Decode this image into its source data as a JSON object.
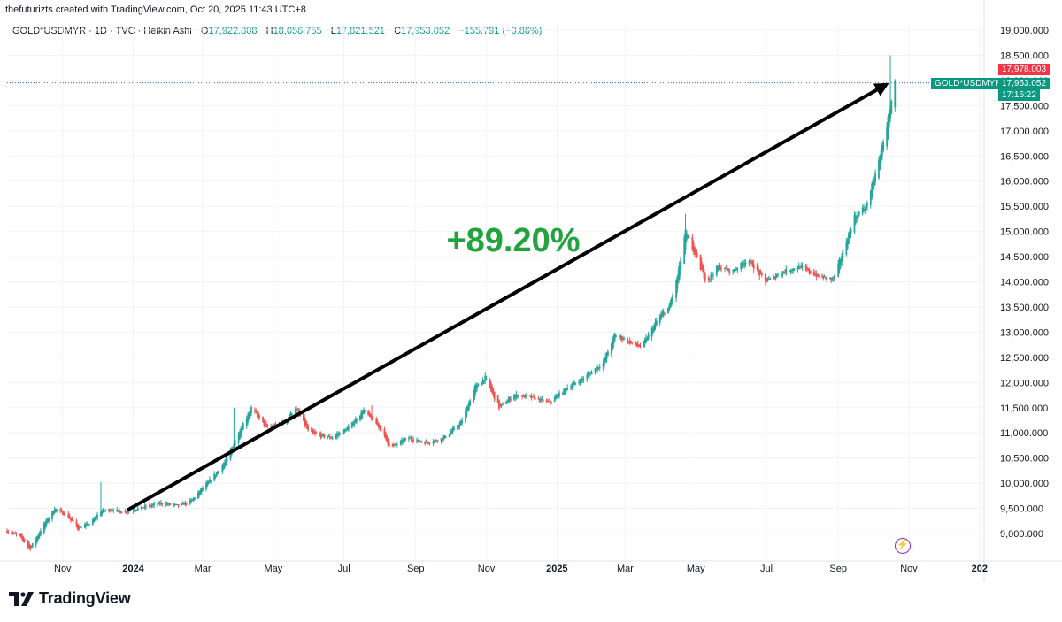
{
  "header": {
    "credit": "thefuturizts created with TradingView.com, Oct 20, 2025 11:43 UTC+8"
  },
  "legend": {
    "symbol": "GOLD*USDMYR · 1D · TVC · Heikin Ashi",
    "open_label": "O",
    "open": "17,922.808",
    "high_label": "H",
    "high": "18,056.755",
    "low_label": "L",
    "low": "17,821.521",
    "close_label": "C",
    "close": "17,953.052",
    "change": "−155.791 (−0.86%)"
  },
  "price_tags": {
    "symbol_tag": "GOLD*USDMYR",
    "high_tag": "17,978.003",
    "last_price": "17,953.052",
    "countdown": "17:16:22"
  },
  "annotation": {
    "text": "+89.20%"
  },
  "footer": {
    "brand": "TradingView"
  },
  "colors": {
    "up": "#26a69a",
    "down": "#ef5350",
    "annotation": "#22a33d",
    "arrow": "#000000",
    "price_line": "#2962ff",
    "tag_green": "#089981",
    "tag_red": "#f23645"
  },
  "chart_data": {
    "type": "candlestick",
    "title": "GOLD*USDMYR",
    "x_ticks": [
      "Nov",
      "2024",
      "Mar",
      "May",
      "Jul",
      "Sep",
      "Nov",
      "2025",
      "Mar",
      "May",
      "Jul",
      "Sep",
      "Nov",
      "202"
    ],
    "y_ticks": [
      "19,000.000",
      "18,500.000",
      "18,000.000",
      "17,500.000",
      "17,000.000",
      "16,500.000",
      "16,000.000",
      "15,500.000",
      "15,000.000",
      "14,500.000",
      "14,000.000",
      "13,500.000",
      "13,000.000",
      "12,500.000",
      "12,000.000",
      "11,500.000",
      "11,000.000",
      "10,500.000",
      "10,000.000",
      "9,500.000",
      "9,000.000"
    ],
    "ylim": [
      8600,
      19200
    ],
    "x_range": [
      "2023-09-14",
      "2026-01-05"
    ],
    "series_path": [
      [
        "2023-09-14",
        9050
      ],
      [
        "2023-09-25",
        8950
      ],
      [
        "2023-10-04",
        8700
      ],
      [
        "2023-10-15",
        9150
      ],
      [
        "2023-10-25",
        9500
      ],
      [
        "2023-11-05",
        9350
      ],
      [
        "2023-11-14",
        9100
      ],
      [
        "2023-11-25",
        9200
      ],
      [
        "2023-12-04",
        9450
      ],
      [
        "2023-12-15",
        9480
      ],
      [
        "2023-12-22",
        9420
      ],
      [
        "2024-01-05",
        9500
      ],
      [
        "2024-01-25",
        9600
      ],
      [
        "2024-02-10",
        9550
      ],
      [
        "2024-02-20",
        9650
      ],
      [
        "2024-03-05",
        10000
      ],
      [
        "2024-03-20",
        10400
      ],
      [
        "2024-04-01",
        11000
      ],
      [
        "2024-04-12",
        11500
      ],
      [
        "2024-04-25",
        11100
      ],
      [
        "2024-05-10",
        11200
      ],
      [
        "2024-05-20",
        11500
      ],
      [
        "2024-06-01",
        11000
      ],
      [
        "2024-06-20",
        10900
      ],
      [
        "2024-07-05",
        11100
      ],
      [
        "2024-07-18",
        11450
      ],
      [
        "2024-08-01",
        11100
      ],
      [
        "2024-08-10",
        10700
      ],
      [
        "2024-08-25",
        10900
      ],
      [
        "2024-09-10",
        10800
      ],
      [
        "2024-09-25",
        10900
      ],
      [
        "2024-10-10",
        11200
      ],
      [
        "2024-10-22",
        11900
      ],
      [
        "2024-10-31",
        12100
      ],
      [
        "2024-11-12",
        11500
      ],
      [
        "2024-11-25",
        11750
      ],
      [
        "2024-12-10",
        11700
      ],
      [
        "2024-12-25",
        11600
      ],
      [
        "2025-01-10",
        11900
      ],
      [
        "2025-01-25",
        12100
      ],
      [
        "2025-02-10",
        12400
      ],
      [
        "2025-02-20",
        12950
      ],
      [
        "2025-03-05",
        12800
      ],
      [
        "2025-03-15",
        12700
      ],
      [
        "2025-03-30",
        13300
      ],
      [
        "2025-04-08",
        13500
      ],
      [
        "2025-04-15",
        14100
      ],
      [
        "2025-04-22",
        15000
      ],
      [
        "2025-05-01",
        14500
      ],
      [
        "2025-05-10",
        14000
      ],
      [
        "2025-05-20",
        14300
      ],
      [
        "2025-06-01",
        14200
      ],
      [
        "2025-06-15",
        14450
      ],
      [
        "2025-06-30",
        14000
      ],
      [
        "2025-07-15",
        14200
      ],
      [
        "2025-07-30",
        14300
      ],
      [
        "2025-08-15",
        14100
      ],
      [
        "2025-08-28",
        14050
      ],
      [
        "2025-09-05",
        14600
      ],
      [
        "2025-09-15",
        15300
      ],
      [
        "2025-09-25",
        15500
      ],
      [
        "2025-10-05",
        16300
      ],
      [
        "2025-10-12",
        17000
      ],
      [
        "2025-10-20",
        17953
      ]
    ],
    "spikes": [
      {
        "date": "2023-12-04",
        "high": 10020
      },
      {
        "date": "2024-03-28",
        "high": 11500
      },
      {
        "date": "2024-07-25",
        "high": 11550
      },
      {
        "date": "2025-04-22",
        "high": 15350
      },
      {
        "date": "2025-10-16",
        "high": 18500
      }
    ],
    "arrow": {
      "from": [
        "2023-12-28",
        9480
      ],
      "to": [
        "2025-10-15",
        17950
      ]
    },
    "last_price": 17953.052
  }
}
